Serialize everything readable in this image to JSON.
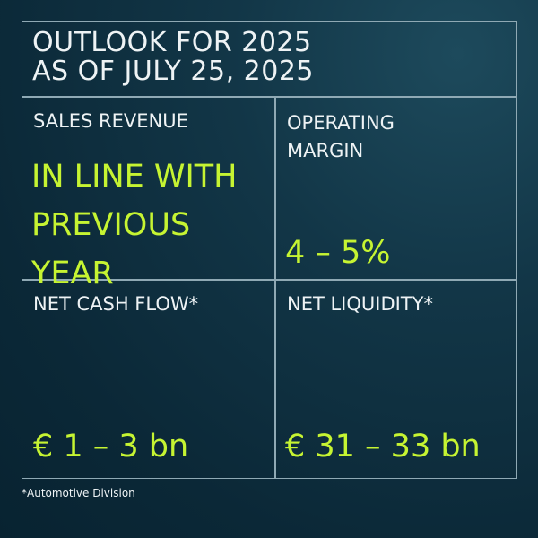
{
  "title": {
    "line1": "OUTLOOK FOR 2025",
    "line2": "AS OF JULY 25, 2025"
  },
  "cells": [
    {
      "label": "SALES REVENUE",
      "value_lines": [
        "IN LINE WITH",
        "PREVIOUS",
        "YEAR"
      ]
    },
    {
      "label_lines": [
        "OPERATING",
        "MARGIN"
      ],
      "value": "4 – 5%"
    },
    {
      "label": "NET CASH FLOW*",
      "value": "€ 1 – 3 bn"
    },
    {
      "label": "NET LIQUIDITY*",
      "value": "€ 31 – 33 bn"
    }
  ],
  "footnote": "*Automotive Division",
  "colors": {
    "accent": "#c6f432",
    "background": "#0b2837",
    "border": "#8fa9b4"
  }
}
